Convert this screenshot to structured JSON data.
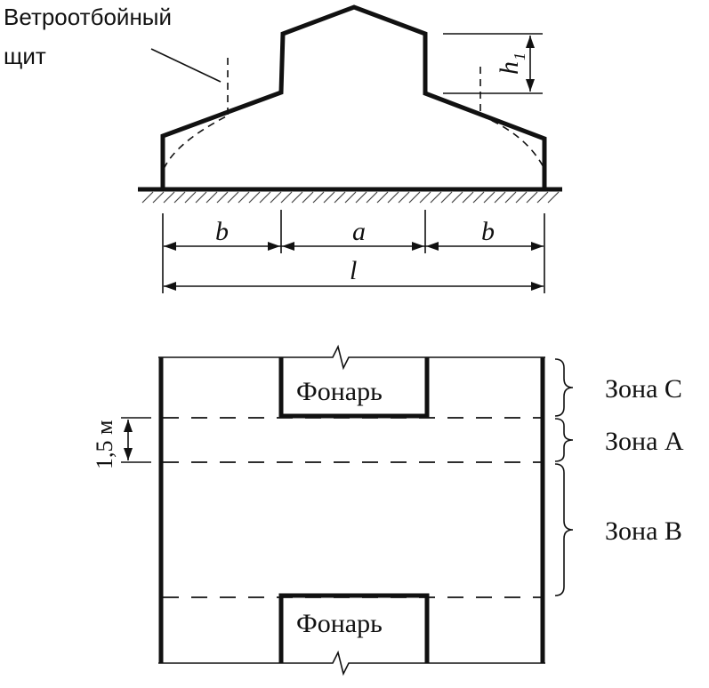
{
  "elevation": {
    "windshield_label_line1": "Ветроотбойный",
    "windshield_label_line2": "щит",
    "dim_b_left": "b",
    "dim_a": "a",
    "dim_b_right": "b",
    "dim_l": "l",
    "dim_h": "h",
    "dim_h_sub": "1"
  },
  "plan": {
    "lantern_top": "Фонарь",
    "lantern_bottom": "Фонарь",
    "dim_vertical": "1,5 м",
    "zone_c": "Зона C",
    "zone_a": "Зона A",
    "zone_b": "Зона B"
  }
}
